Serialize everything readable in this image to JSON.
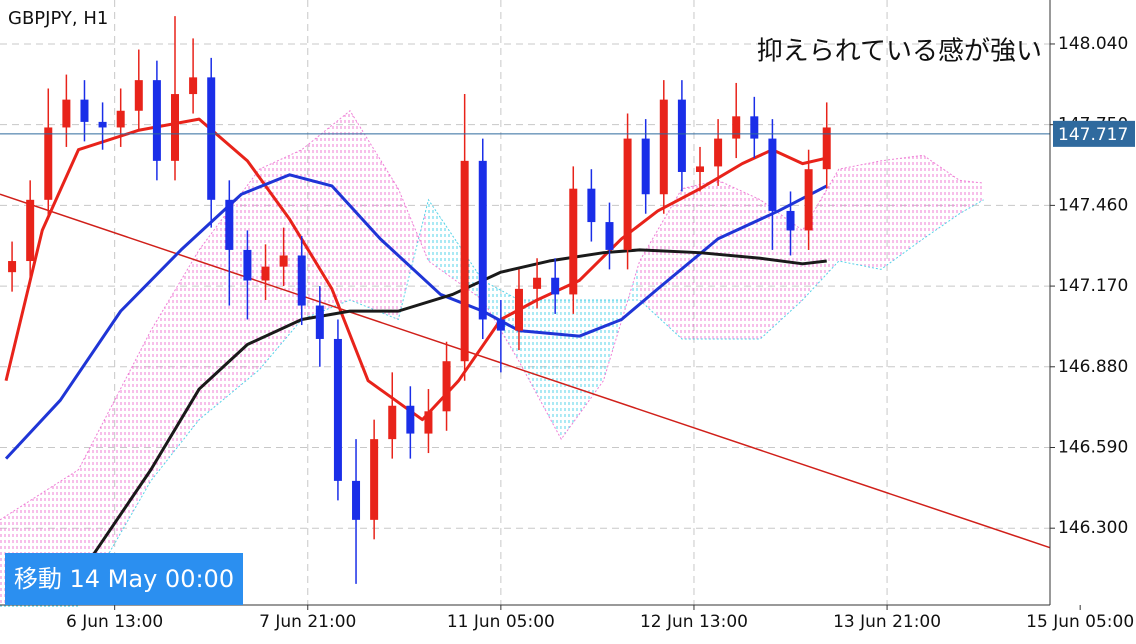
{
  "chart_data": {
    "type": "candlestick",
    "title": "GBPJPY, H1",
    "annotation": "抑えられている感が強い",
    "button": "移動 14 May 00:00",
    "up_color": "#e8231a",
    "down_color": "#1a2ee8",
    "grid": true,
    "xlim": [
      -2,
      172
    ],
    "ylim": [
      146.024,
      148.198
    ],
    "xticks": [
      {
        "value": 17,
        "label": "6 Jun 13:00"
      },
      {
        "value": 49,
        "label": "7 Jun 21:00"
      },
      {
        "value": 81,
        "label": "11 Jun 05:00"
      },
      {
        "value": 113,
        "label": "12 Jun 13:00"
      },
      {
        "value": 145,
        "label": "13 Jun 21:00"
      },
      {
        "value": 177,
        "label": "15 Jun 05:00"
      }
    ],
    "yticks": [
      {
        "value": 148.04,
        "label": "148.040"
      },
      {
        "value": 147.75,
        "label": "147.750"
      },
      {
        "value": 147.46,
        "label": "147.460"
      },
      {
        "value": 147.17,
        "label": "147.170"
      },
      {
        "value": 146.88,
        "label": "146.880"
      },
      {
        "value": 146.59,
        "label": "146.590"
      },
      {
        "value": 146.3,
        "label": "146.300"
      }
    ],
    "current_price": 147.717,
    "current_price_color": "#2f6a9e",
    "x": [
      0,
      3,
      6,
      9,
      12,
      15,
      18,
      21,
      24,
      27,
      30,
      33,
      36,
      39,
      42,
      45,
      48,
      51,
      54,
      57,
      60,
      63,
      66,
      69,
      72,
      75,
      78,
      81,
      84,
      87,
      90,
      93,
      96,
      99,
      102,
      105,
      108,
      111,
      114,
      117,
      120,
      123,
      126,
      129,
      132,
      135
    ],
    "open": [
      147.22,
      147.26,
      147.48,
      147.74,
      147.84,
      147.76,
      147.74,
      147.8,
      147.91,
      147.62,
      147.86,
      147.92,
      147.48,
      147.3,
      147.19,
      147.24,
      147.28,
      147.1,
      146.98,
      146.47,
      146.33,
      146.62,
      146.74,
      146.64,
      146.72,
      146.9,
      147.62,
      147.05,
      147.01,
      147.16,
      147.2,
      147.14,
      147.52,
      147.4,
      147.3,
      147.7,
      147.5,
      147.84,
      147.58,
      147.6,
      147.7,
      147.78,
      147.7,
      147.44,
      147.37,
      147.59
    ],
    "high": [
      147.33,
      147.55,
      147.88,
      147.93,
      147.91,
      147.83,
      147.88,
      148.02,
      147.98,
      148.14,
      148.06,
      147.99,
      147.55,
      147.37,
      147.32,
      147.38,
      147.35,
      147.17,
      147.05,
      146.62,
      146.69,
      146.86,
      146.81,
      146.8,
      146.97,
      147.86,
      147.7,
      147.12,
      147.23,
      147.27,
      147.27,
      147.6,
      147.59,
      147.47,
      147.79,
      147.77,
      147.91,
      147.91,
      147.67,
      147.77,
      147.9,
      147.85,
      147.77,
      147.51,
      147.66,
      147.83
    ],
    "low": [
      147.15,
      147.19,
      147.41,
      147.67,
      147.69,
      147.66,
      147.67,
      147.73,
      147.55,
      147.55,
      147.79,
      147.38,
      147.1,
      147.05,
      147.12,
      147.17,
      147.03,
      146.88,
      146.4,
      146.1,
      146.26,
      146.55,
      146.55,
      146.57,
      146.65,
      146.83,
      146.98,
      146.86,
      146.94,
      147.09,
      147.07,
      147.07,
      147.33,
      147.23,
      147.23,
      147.43,
      147.43,
      147.51,
      147.51,
      147.53,
      147.63,
      147.63,
      147.3,
      147.28,
      147.3,
      147.52
    ],
    "close": [
      147.26,
      147.48,
      147.74,
      147.84,
      147.76,
      147.74,
      147.8,
      147.91,
      147.62,
      147.86,
      147.92,
      147.48,
      147.3,
      147.19,
      147.24,
      147.28,
      147.1,
      146.98,
      146.47,
      146.33,
      146.62,
      146.74,
      146.64,
      146.72,
      146.9,
      147.62,
      147.05,
      147.01,
      147.16,
      147.2,
      147.14,
      147.52,
      147.4,
      147.3,
      147.7,
      147.5,
      147.84,
      147.58,
      147.6,
      147.7,
      147.78,
      147.7,
      147.44,
      147.37,
      147.59,
      147.74
    ],
    "lines": [
      {
        "color": "#e8231a",
        "x": [
          -1,
          5,
          11,
          21,
          31,
          39,
          46,
          53,
          59,
          68,
          74,
          81,
          87,
          94,
          101,
          107,
          114,
          121,
          126,
          131,
          135
        ],
        "values": [
          146.83,
          147.37,
          147.66,
          147.73,
          147.77,
          147.62,
          147.41,
          147.16,
          146.83,
          146.69,
          146.83,
          147.05,
          147.12,
          147.19,
          147.34,
          147.44,
          147.52,
          147.61,
          147.66,
          147.61,
          147.63
        ]
      },
      {
        "color": "#1f35d6",
        "x": [
          -1,
          8,
          18,
          28,
          38,
          46,
          53,
          61,
          71,
          78,
          84,
          94,
          101,
          107,
          117,
          127,
          135
        ],
        "values": [
          146.55,
          146.76,
          147.08,
          147.3,
          147.5,
          147.57,
          147.53,
          147.34,
          147.14,
          147.08,
          147.01,
          146.99,
          147.05,
          147.16,
          147.34,
          147.44,
          147.53
        ]
      },
      {
        "color": "#1a1a1a",
        "x": [
          13,
          23,
          31,
          39,
          48,
          56,
          64,
          73,
          81,
          89,
          98,
          104,
          114,
          124,
          131,
          135
        ],
        "values": [
          146.19,
          146.51,
          146.8,
          146.96,
          147.05,
          147.08,
          147.08,
          147.14,
          147.22,
          147.26,
          147.29,
          147.3,
          147.29,
          147.27,
          147.25,
          147.26
        ]
      }
    ],
    "trendline": {
      "color": "#d0201a",
      "x": [
        -2,
        172
      ],
      "values": [
        147.5,
        146.23
      ]
    },
    "cloud": {
      "bear_color": "#ef7fd6",
      "bull_color": "#55d3e8",
      "x": [
        -2,
        11,
        23,
        31,
        41,
        48,
        56,
        64,
        69,
        78,
        84,
        91,
        98,
        104,
        111,
        117,
        124,
        131,
        137,
        144,
        151,
        157,
        161
      ],
      "span_a": [
        146.02,
        146.02,
        146.47,
        146.69,
        146.87,
        147.05,
        147.12,
        147.05,
        147.48,
        147.19,
        147.12,
        147.12,
        147.12,
        147.12,
        146.98,
        146.98,
        146.98,
        147.12,
        147.26,
        147.23,
        147.34,
        147.43,
        147.48
      ],
      "span_b": [
        146.33,
        146.51,
        147.01,
        147.3,
        147.59,
        147.66,
        147.8,
        147.52,
        147.26,
        147.12,
        146.9,
        146.62,
        146.83,
        147.26,
        147.52,
        147.55,
        147.48,
        147.37,
        147.59,
        147.62,
        147.64,
        147.55,
        147.54
      ]
    }
  }
}
